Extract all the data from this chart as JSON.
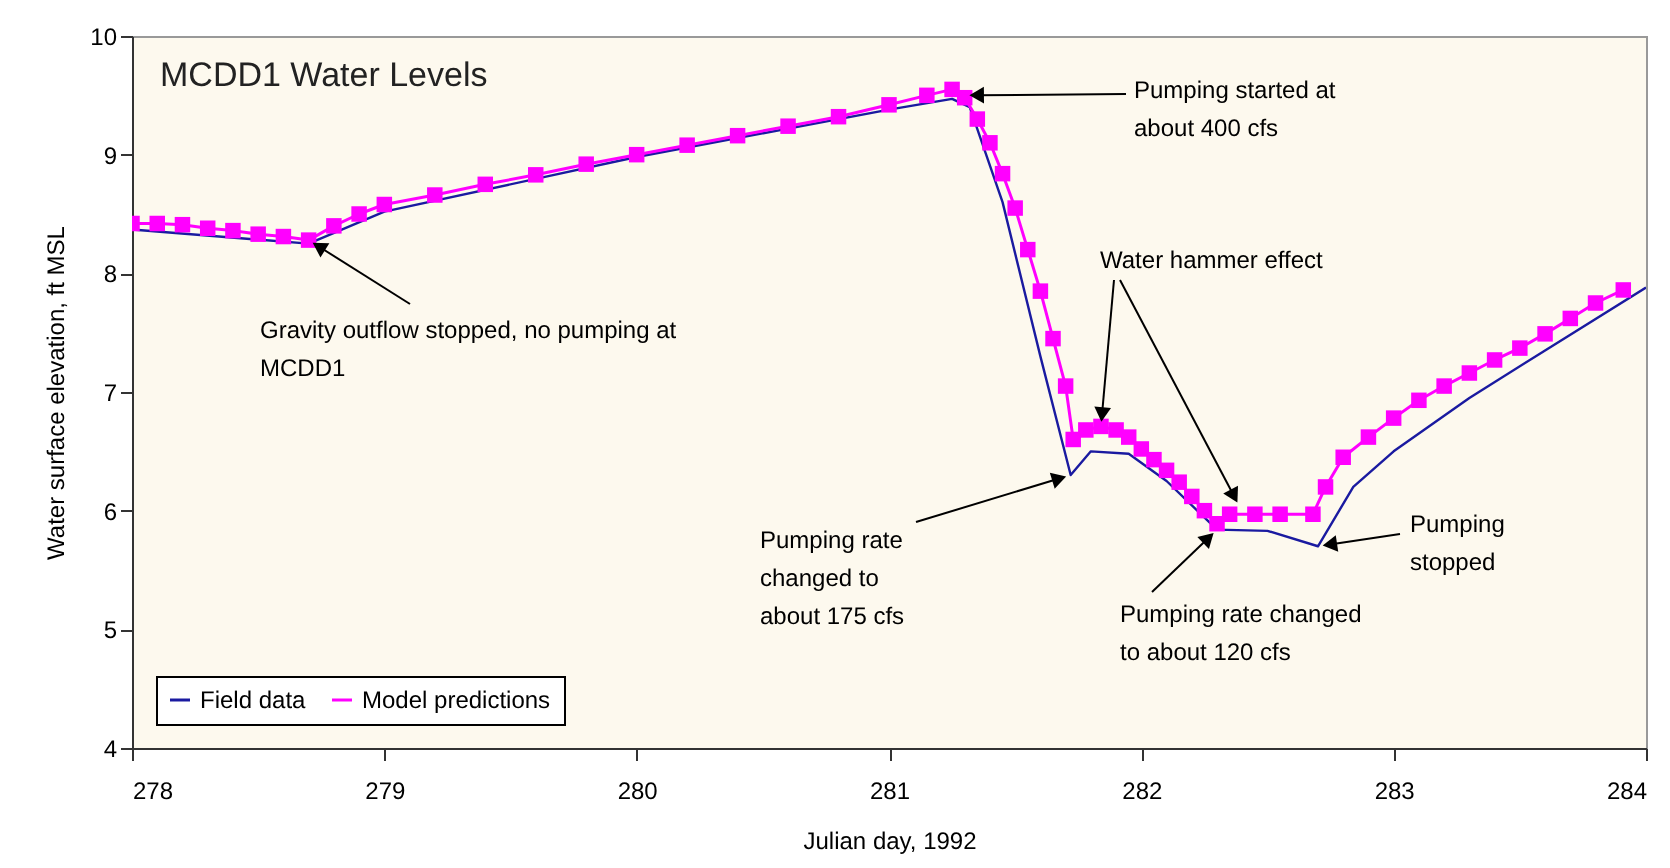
{
  "chart_data": {
    "type": "line",
    "title": "MCDD1 Water Levels",
    "xlabel": "Julian day, 1992",
    "ylabel": "Water surface elevation, ft MSL",
    "xlim": [
      278,
      284
    ],
    "xticks": [
      278,
      279,
      280,
      281,
      282,
      283,
      284
    ],
    "ylim": [
      4,
      10
    ],
    "yticks": [
      4,
      5,
      6,
      7,
      8,
      9,
      10
    ],
    "grid": false,
    "legend": "bottom left",
    "series": [
      {
        "name": "Field data",
        "color": "#1a1aa0",
        "marker": "none",
        "x": [
          278,
          278.7,
          279,
          280,
          281,
          281.25,
          281.32,
          281.45,
          281.6,
          281.72,
          281.8,
          281.95,
          282.1,
          282.3,
          282.5,
          282.7,
          282.84,
          283.0,
          283.3,
          283.6,
          284.0
        ],
        "values": [
          8.37,
          8.25,
          8.52,
          8.98,
          9.38,
          9.47,
          9.4,
          8.6,
          7.3,
          6.3,
          6.5,
          6.48,
          6.25,
          5.84,
          5.83,
          5.7,
          6.2,
          6.5,
          6.95,
          7.35,
          7.88
        ]
      },
      {
        "name": "Model predictions",
        "color": "#ff00ff",
        "marker": "square",
        "x": [
          278.0,
          278.1,
          278.2,
          278.3,
          278.4,
          278.5,
          278.6,
          278.7,
          278.8,
          278.9,
          279.0,
          279.2,
          279.4,
          279.6,
          279.8,
          280.0,
          280.2,
          280.4,
          280.6,
          280.8,
          281.0,
          281.15,
          281.25,
          281.3,
          281.35,
          281.4,
          281.45,
          281.5,
          281.55,
          281.6,
          281.65,
          281.7,
          281.73,
          281.78,
          281.84,
          281.9,
          281.95,
          282.0,
          282.05,
          282.1,
          282.15,
          282.2,
          282.25,
          282.3,
          282.35,
          282.45,
          282.55,
          282.68,
          282.73,
          282.8,
          282.9,
          283.0,
          283.1,
          283.2,
          283.3,
          283.4,
          283.5,
          283.6,
          283.7,
          283.8,
          283.91
        ],
        "values": [
          8.42,
          8.42,
          8.41,
          8.38,
          8.36,
          8.33,
          8.31,
          8.28,
          8.4,
          8.5,
          8.58,
          8.66,
          8.75,
          8.83,
          8.92,
          9.0,
          9.08,
          9.16,
          9.24,
          9.32,
          9.42,
          9.5,
          9.55,
          9.48,
          9.3,
          9.1,
          8.84,
          8.55,
          8.2,
          7.85,
          7.45,
          7.05,
          6.6,
          6.68,
          6.71,
          6.68,
          6.62,
          6.52,
          6.43,
          6.34,
          6.24,
          6.12,
          6.0,
          5.89,
          5.97,
          5.97,
          5.97,
          5.97,
          6.2,
          6.45,
          6.62,
          6.78,
          6.93,
          7.05,
          7.16,
          7.27,
          7.37,
          7.49,
          7.62,
          7.75,
          7.86
        ]
      }
    ],
    "annotations": [
      {
        "text": "Gravity outflow stopped, no pumping at\nMCDD1",
        "x": 278.7,
        "y": 8.28
      },
      {
        "text": "Pumping started at\nabout 400 cfs",
        "x": 281.3,
        "y": 9.5
      },
      {
        "text": "Water hammer effect",
        "x": 281.84,
        "y": 6.71
      },
      {
        "text": "Pumping rate\nchanged to\nabout 175 cfs",
        "x": 281.72,
        "y": 6.3
      },
      {
        "text": "Pumping rate changed\nto about 120 cfs",
        "x": 282.3,
        "y": 5.84
      },
      {
        "text": "Pumping\nstopped",
        "x": 282.7,
        "y": 5.7
      }
    ]
  }
}
